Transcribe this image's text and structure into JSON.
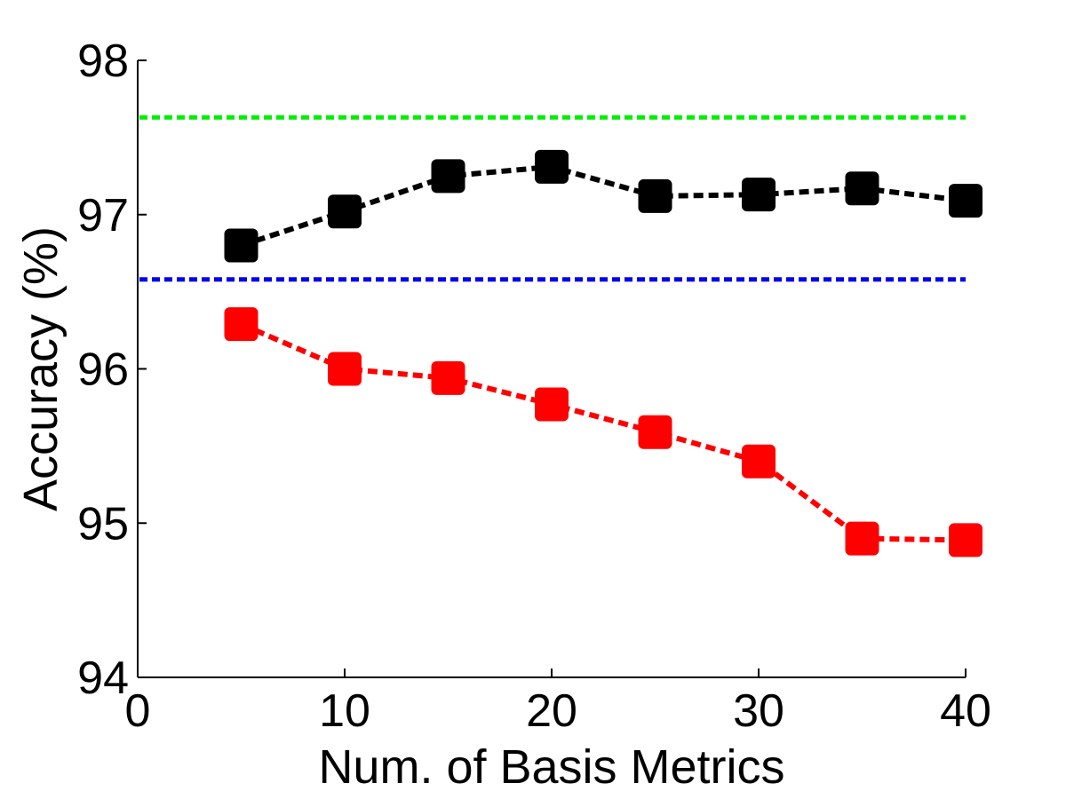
{
  "chart_data": {
    "type": "line",
    "title": "",
    "xlabel": "Num. of Basis Metrics",
    "ylabel": "Accuracy (%)",
    "xlim": [
      0,
      40
    ],
    "ylim": [
      94,
      98
    ],
    "xticks": [
      0,
      10,
      20,
      30,
      40
    ],
    "yticks": [
      94,
      95,
      96,
      97,
      98
    ],
    "grid": false,
    "legend": "none",
    "x": [
      5,
      10,
      15,
      20,
      25,
      30,
      35,
      40
    ],
    "series": [
      {
        "name": "black-series",
        "color": "#000000",
        "line_style": "dashed",
        "marker": "square",
        "values": [
          96.8,
          97.02,
          97.25,
          97.31,
          97.12,
          97.13,
          97.17,
          97.09
        ]
      },
      {
        "name": "red-series",
        "color": "#ff0000",
        "line_style": "dashed",
        "marker": "square",
        "values": [
          96.29,
          96.0,
          95.94,
          95.77,
          95.59,
          95.4,
          94.9,
          94.89
        ]
      }
    ],
    "reference_lines": [
      {
        "name": "green-reference",
        "color": "#00ee00",
        "y": 97.63
      },
      {
        "name": "blue-reference",
        "color": "#0000ee",
        "y": 96.58
      }
    ]
  }
}
